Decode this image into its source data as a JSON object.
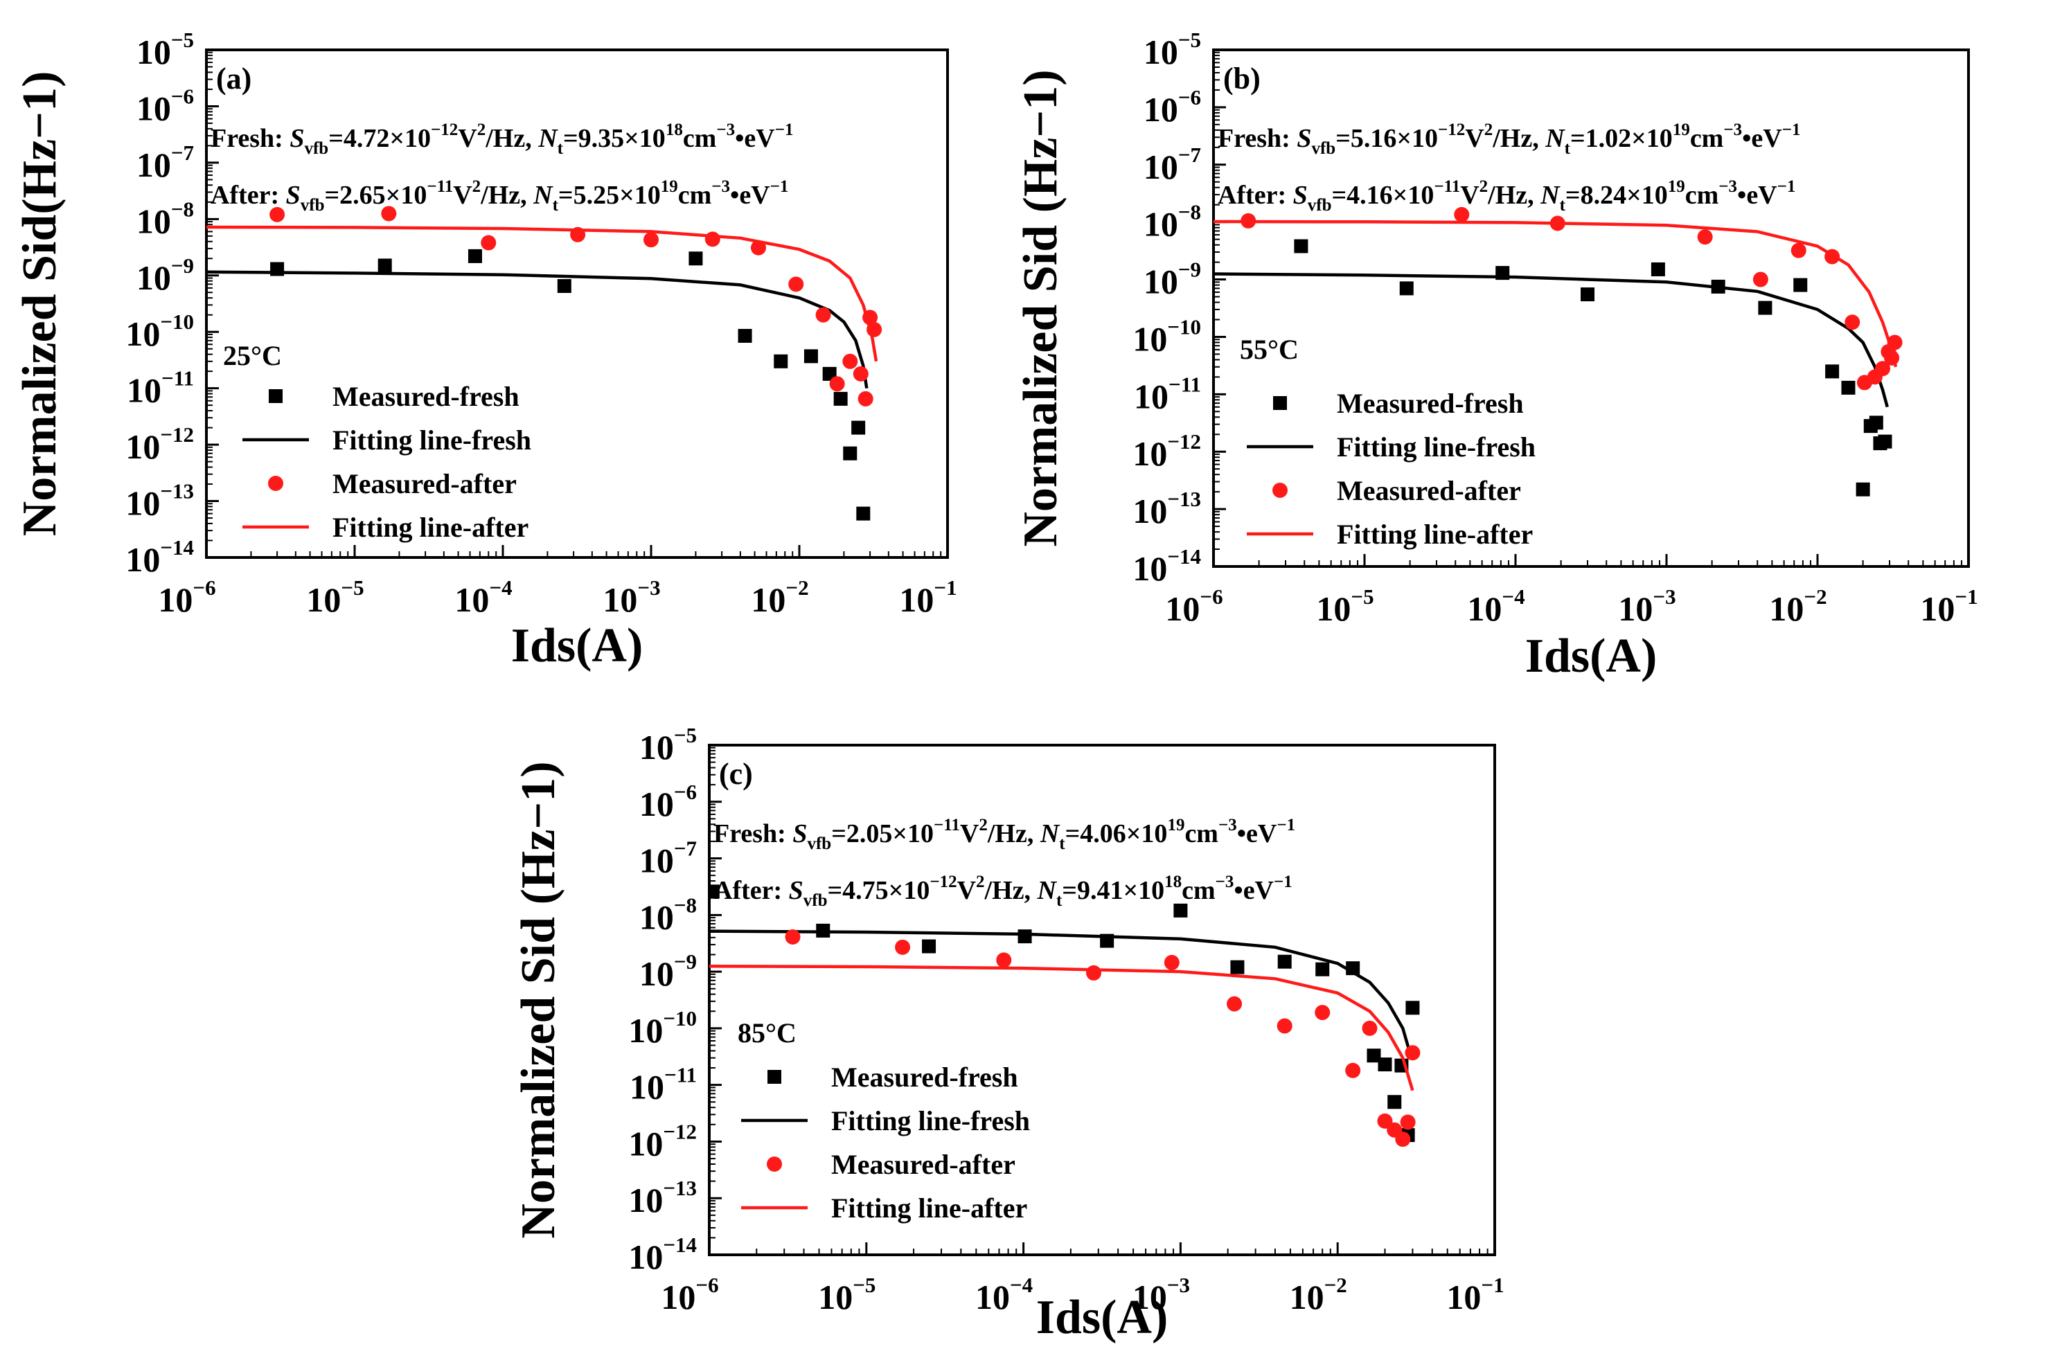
{
  "chart_data": [
    {
      "type": "scatter",
      "panel": "(a)",
      "temperature": "25°C",
      "xlabel": "Ids(A)",
      "ylabel": "Normalized Sid(Hz−1)",
      "xscale": "log",
      "yscale": "log",
      "xlim": [
        1e-06,
        0.1
      ],
      "ylim": [
        1e-14,
        1e-05
      ],
      "xticks": [
        "10",
        "10",
        "10",
        "10",
        "10",
        "10"
      ],
      "xtick_exponents": [
        "−6",
        "−5",
        "−4",
        "−3",
        "−2",
        "−1"
      ],
      "yticks": [
        "10",
        "10",
        "10",
        "10",
        "10",
        "10",
        "10",
        "10",
        "10",
        "10"
      ],
      "ytick_exponents": [
        "−14",
        "−13",
        "−12",
        "−11",
        "−10",
        "−9",
        "−8",
        "−7",
        "−6",
        "−5"
      ],
      "annotations": [
        {
          "prefix": "Fresh: ",
          "s": "S",
          "s_sub": "vfb",
          "s_val": "=4.72×10",
          "s_exp": "−12",
          "s_unit": "V",
          "s_unit_exp": "2",
          "mid": "/Hz, ",
          "n": "N",
          "n_sub": "t",
          "n_val": "=9.35×10",
          "n_exp": "18",
          "n_unit": "cm",
          "n_unit_exp": "−3",
          "tail": "•eV",
          "tail_exp": "−1"
        },
        {
          "prefix": "After: ",
          "s": "S",
          "s_sub": "vfb",
          "s_val": "=2.65×10",
          "s_exp": "−11",
          "s_unit": "V",
          "s_unit_exp": "2",
          "mid": "/Hz, ",
          "n": "N",
          "n_sub": "t",
          "n_val": "=5.25×10",
          "n_exp": "19",
          "n_unit": "cm",
          "n_unit_exp": "−3",
          "tail": "•eV",
          "tail_exp": "−1"
        }
      ],
      "legend": [
        "Measured-fresh",
        "Fitting line-fresh",
        "Measured-after",
        "Fitting line-after"
      ],
      "legend_position": "lower-left",
      "series": [
        {
          "name": "Measured-fresh",
          "kind": "scatter",
          "marker": "square",
          "color": "#000000",
          "points": [
            [
              3e-06,
              1.3e-09
            ],
            [
              1.6e-05,
              1.5e-09
            ],
            [
              6.5e-05,
              2.2e-09
            ],
            [
              0.00026,
              6.5e-10
            ],
            [
              0.002,
              2e-09
            ],
            [
              0.0043,
              8.5e-11
            ],
            [
              0.0075,
              3e-11
            ],
            [
              0.012,
              3.7e-11
            ],
            [
              0.016,
              1.8e-11
            ],
            [
              0.019,
              6.5e-12
            ],
            [
              0.022,
              7e-13
            ],
            [
              0.025,
              2e-12
            ],
            [
              0.027,
              6e-14
            ]
          ]
        },
        {
          "name": "Fitting line-fresh",
          "kind": "line",
          "color": "#000000",
          "points": [
            [
              1e-06,
              1.15e-09
            ],
            [
              1e-05,
              1.1e-09
            ],
            [
              0.0001,
              1.03e-09
            ],
            [
              0.001,
              8.8e-10
            ],
            [
              0.004,
              6.8e-10
            ],
            [
              0.01,
              4e-10
            ],
            [
              0.016,
              2.4e-10
            ],
            [
              0.02,
              1.5e-10
            ],
            [
              0.024,
              7e-11
            ],
            [
              0.027,
              2.5e-11
            ],
            [
              0.0285,
              1e-11
            ]
          ]
        },
        {
          "name": "Measured-after",
          "kind": "scatter",
          "marker": "circle",
          "color": "#ff1a1a",
          "points": [
            [
              3e-06,
              1.2e-08
            ],
            [
              1.7e-05,
              1.25e-08
            ],
            [
              8e-05,
              3.8e-09
            ],
            [
              0.00032,
              5.3e-09
            ],
            [
              0.001,
              4.3e-09
            ],
            [
              0.0026,
              4.4e-09
            ],
            [
              0.0053,
              3.1e-09
            ],
            [
              0.0095,
              7e-10
            ],
            [
              0.0145,
              2e-10
            ],
            [
              0.018,
              1.2e-11
            ],
            [
              0.022,
              3e-11
            ],
            [
              0.026,
              1.8e-11
            ],
            [
              0.028,
              6.5e-12
            ],
            [
              0.03,
              1.8e-10
            ],
            [
              0.032,
              1.1e-10
            ]
          ]
        },
        {
          "name": "Fitting line-after",
          "kind": "line",
          "color": "#ff1a1a",
          "points": [
            [
              1e-06,
              7.2e-09
            ],
            [
              1e-05,
              7.1e-09
            ],
            [
              0.0001,
              6.8e-09
            ],
            [
              0.001,
              6e-09
            ],
            [
              0.004,
              4.6e-09
            ],
            [
              0.01,
              2.9e-09
            ],
            [
              0.016,
              1.8e-09
            ],
            [
              0.022,
              9e-10
            ],
            [
              0.027,
              3e-10
            ],
            [
              0.031,
              8e-11
            ],
            [
              0.033,
              3e-11
            ]
          ]
        }
      ]
    },
    {
      "type": "scatter",
      "panel": "(b)",
      "temperature": "55°C",
      "xlabel": "Ids(A)",
      "ylabel": "Normalized Sid (Hz−1)",
      "xscale": "log",
      "yscale": "log",
      "xlim": [
        1e-06,
        0.1
      ],
      "ylim": [
        1e-14,
        1e-05
      ],
      "xticks": [
        "10",
        "10",
        "10",
        "10",
        "10",
        "10"
      ],
      "xtick_exponents": [
        "−6",
        "−5",
        "−4",
        "−3",
        "−2",
        "−1"
      ],
      "yticks": [
        "10",
        "10",
        "10",
        "10",
        "10",
        "10",
        "10",
        "10",
        "10",
        "10"
      ],
      "ytick_exponents": [
        "−14",
        "−13",
        "−12",
        "−11",
        "−10",
        "−9",
        "−8",
        "−7",
        "−6",
        "−5"
      ],
      "annotations": [
        {
          "prefix": "Fresh: ",
          "s": "S",
          "s_sub": "vfb",
          "s_val": "=5.16×10",
          "s_exp": "−12",
          "s_unit": "V",
          "s_unit_exp": "2",
          "mid": "/Hz, ",
          "n": "N",
          "n_sub": "t",
          "n_val": "=1.02×10",
          "n_exp": "19",
          "n_unit": "cm",
          "n_unit_exp": "−3",
          "tail": "•eV",
          "tail_exp": "−1"
        },
        {
          "prefix": "After: ",
          "s": "S",
          "s_sub": "vfb",
          "s_val": "=4.16×10",
          "s_exp": "−11",
          "s_unit": "V",
          "s_unit_exp": "2",
          "mid": "/Hz, ",
          "n": "N",
          "n_sub": "t",
          "n_val": "=8.24×10",
          "n_exp": "19",
          "n_unit": "cm",
          "n_unit_exp": "−3",
          "tail": "•eV",
          "tail_exp": "−1"
        }
      ],
      "legend": [
        "Measured-fresh",
        "Fitting line-fresh",
        "Measured-after",
        "Fitting line-after"
      ],
      "legend_position": "lower-left",
      "series": [
        {
          "name": "Measured-fresh",
          "kind": "scatter",
          "marker": "square",
          "color": "#000000",
          "points": [
            [
              3.8e-06,
              3.8e-09
            ],
            [
              1.9e-05,
              7e-10
            ],
            [
              8.2e-05,
              1.3e-09
            ],
            [
              0.0003,
              5.5e-10
            ],
            [
              0.00088,
              1.5e-09
            ],
            [
              0.0022,
              7.5e-10
            ],
            [
              0.0045,
              3.2e-10
            ],
            [
              0.0077,
              8e-10
            ],
            [
              0.0125,
              2.5e-11
            ],
            [
              0.016,
              1.3e-11
            ],
            [
              0.02,
              2.2e-13
            ],
            [
              0.0225,
              2.8e-12
            ],
            [
              0.0245,
              3.2e-12
            ],
            [
              0.026,
              1.4e-12
            ],
            [
              0.028,
              1.5e-12
            ]
          ]
        },
        {
          "name": "Fitting line-fresh",
          "kind": "line",
          "color": "#000000",
          "points": [
            [
              1e-06,
              1.25e-09
            ],
            [
              1e-05,
              1.19e-09
            ],
            [
              0.0001,
              1.1e-09
            ],
            [
              0.001,
              9e-10
            ],
            [
              0.004,
              6.2e-10
            ],
            [
              0.01,
              3e-10
            ],
            [
              0.016,
              1.4e-10
            ],
            [
              0.02,
              8e-11
            ],
            [
              0.024,
              3e-11
            ],
            [
              0.027,
              1.2e-11
            ],
            [
              0.029,
              6e-12
            ]
          ]
        },
        {
          "name": "Measured-after",
          "kind": "scatter",
          "marker": "circle",
          "color": "#ff1a1a",
          "points": [
            [
              1.7e-06,
              1.05e-08
            ],
            [
              4.4e-05,
              1.35e-08
            ],
            [
              0.00019,
              9.5e-09
            ],
            [
              0.0018,
              5.5e-09
            ],
            [
              0.0042,
              1e-09
            ],
            [
              0.0075,
              3.2e-09
            ],
            [
              0.0125,
              2.5e-09
            ],
            [
              0.017,
              1.8e-10
            ],
            [
              0.0205,
              1.6e-11
            ],
            [
              0.024,
              2e-11
            ],
            [
              0.027,
              2.8e-11
            ],
            [
              0.0295,
              5.5e-11
            ],
            [
              0.031,
              4.3e-11
            ],
            [
              0.0325,
              8e-11
            ]
          ]
        },
        {
          "name": "Fitting line-after",
          "kind": "line",
          "color": "#ff1a1a",
          "points": [
            [
              1e-06,
              1.02e-08
            ],
            [
              1e-05,
              1.01e-08
            ],
            [
              0.0001,
              9.8e-09
            ],
            [
              0.001,
              8.8e-09
            ],
            [
              0.004,
              6.8e-09
            ],
            [
              0.01,
              3.8e-09
            ],
            [
              0.016,
              1.8e-09
            ],
            [
              0.022,
              6e-10
            ],
            [
              0.027,
              1.8e-10
            ],
            [
              0.031,
              6e-11
            ],
            [
              0.033,
              3e-11
            ]
          ]
        }
      ]
    },
    {
      "type": "scatter",
      "panel": "(c)",
      "temperature": "85°C",
      "xlabel": "Ids(A)",
      "ylabel": "Normalized Sid (Hz−1)",
      "xscale": "log",
      "yscale": "log",
      "xlim": [
        1e-06,
        0.1
      ],
      "ylim": [
        1e-14,
        1e-05
      ],
      "xticks": [
        "10",
        "10",
        "10",
        "10",
        "10",
        "10"
      ],
      "xtick_exponents": [
        "−6",
        "−5",
        "−4",
        "−3",
        "−2",
        "−1"
      ],
      "yticks": [
        "10",
        "10",
        "10",
        "10",
        "10",
        "10",
        "10",
        "10",
        "10",
        "10"
      ],
      "ytick_exponents": [
        "−14",
        "−13",
        "−12",
        "−11",
        "−10",
        "−9",
        "−8",
        "−7",
        "−6",
        "−5"
      ],
      "annotations": [
        {
          "prefix": "Fresh: ",
          "s": "S",
          "s_sub": "vfb",
          "s_val": "=2.05×10",
          "s_exp": "−11",
          "s_unit": "V",
          "s_unit_exp": "2",
          "mid": "/Hz, ",
          "n": "N",
          "n_sub": "t",
          "n_val": "=4.06×10",
          "n_exp": "19",
          "n_unit": "cm",
          "n_unit_exp": "−3",
          "tail": "•eV",
          "tail_exp": "−1"
        },
        {
          "prefix": "After: ",
          "s": "S",
          "s_sub": "vfb",
          "s_val": "=4.75×10",
          "s_exp": "−12",
          "s_unit": "V",
          "s_unit_exp": "2",
          "mid": "/Hz, ",
          "n": "N",
          "n_sub": "t",
          "n_val": "=9.41×10",
          "n_exp": "18",
          "n_unit": "cm",
          "n_unit_exp": "−3",
          "tail": "•eV",
          "tail_exp": "−1"
        }
      ],
      "legend": [
        "Measured-fresh",
        "Fitting line-fresh",
        "Measured-after",
        "Fitting line-after"
      ],
      "legend_position": "lower-left",
      "series": [
        {
          "name": "Measured-fresh",
          "kind": "scatter",
          "marker": "square",
          "color": "#000000",
          "points": [
            [
              1.05e-06,
              2.6e-08
            ],
            [
              5.3e-06,
              5.3e-09
            ],
            [
              2.5e-05,
              2.8e-09
            ],
            [
              0.000102,
              4.2e-09
            ],
            [
              0.00034,
              3.5e-09
            ],
            [
              0.001,
              1.2e-08
            ],
            [
              0.0023,
              1.2e-09
            ],
            [
              0.0046,
              1.5e-09
            ],
            [
              0.008,
              1.1e-09
            ],
            [
              0.0125,
              1.15e-09
            ],
            [
              0.017,
              3.3e-11
            ],
            [
              0.02,
              2.3e-11
            ],
            [
              0.023,
              5e-12
            ],
            [
              0.0255,
              2.2e-11
            ],
            [
              0.028,
              1.3e-12
            ],
            [
              0.03,
              2.3e-10
            ]
          ]
        },
        {
          "name": "Fitting line-fresh",
          "kind": "line",
          "color": "#000000",
          "points": [
            [
              1e-06,
              5.2e-09
            ],
            [
              1e-05,
              5e-09
            ],
            [
              0.0001,
              4.6e-09
            ],
            [
              0.001,
              3.8e-09
            ],
            [
              0.004,
              2.7e-09
            ],
            [
              0.01,
              1.4e-09
            ],
            [
              0.016,
              6.5e-10
            ],
            [
              0.021,
              2.8e-10
            ],
            [
              0.026,
              1e-10
            ],
            [
              0.029,
              3.5e-11
            ]
          ]
        },
        {
          "name": "Measured-after",
          "kind": "scatter",
          "marker": "circle",
          "color": "#ff1a1a",
          "points": [
            [
              3.4e-06,
              4.1e-09
            ],
            [
              1.7e-05,
              2.7e-09
            ],
            [
              7.5e-05,
              1.6e-09
            ],
            [
              0.00028,
              9.5e-10
            ],
            [
              0.00088,
              1.45e-09
            ],
            [
              0.0022,
              2.7e-10
            ],
            [
              0.0046,
              1.1e-10
            ],
            [
              0.008,
              1.9e-10
            ],
            [
              0.0125,
              1.8e-11
            ],
            [
              0.016,
              1e-10
            ],
            [
              0.02,
              2.3e-12
            ],
            [
              0.023,
              1.6e-12
            ],
            [
              0.026,
              1.1e-12
            ],
            [
              0.028,
              2.2e-12
            ],
            [
              0.03,
              3.7e-11
            ]
          ]
        },
        {
          "name": "Fitting line-after",
          "kind": "line",
          "color": "#ff1a1a",
          "points": [
            [
              1e-06,
              1.25e-09
            ],
            [
              1e-05,
              1.22e-09
            ],
            [
              0.0001,
              1.15e-09
            ],
            [
              0.001,
              1e-09
            ],
            [
              0.004,
              7.5e-10
            ],
            [
              0.01,
              4.2e-10
            ],
            [
              0.016,
              2e-10
            ],
            [
              0.021,
              8.5e-11
            ],
            [
              0.026,
              3e-11
            ],
            [
              0.03,
              8e-12
            ]
          ]
        }
      ]
    }
  ]
}
